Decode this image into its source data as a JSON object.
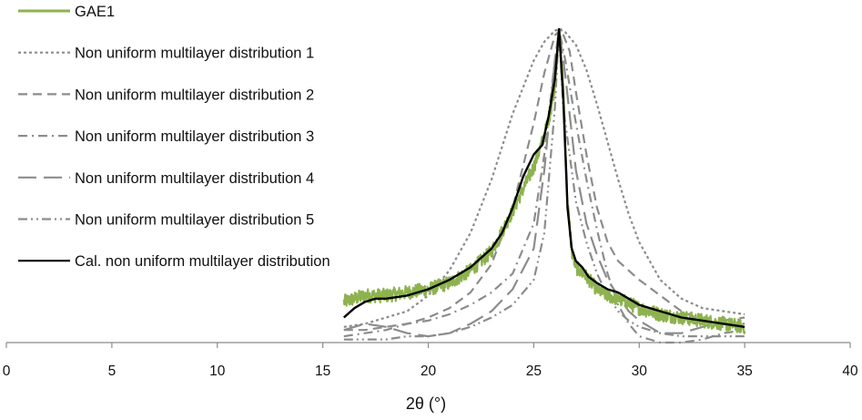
{
  "chart_data": {
    "type": "line",
    "title": "",
    "xlabel": "2θ (°)",
    "ylabel": "",
    "xlim": [
      0,
      40
    ],
    "ylim": [
      0,
      1
    ],
    "xticks": [
      "0",
      "5",
      "10",
      "15",
      "20",
      "25",
      "30",
      "35",
      "40"
    ],
    "y_axis_visible": false,
    "grid": false,
    "legend_position": "top-left",
    "series": [
      {
        "name": "GAE1",
        "color": "#8DB24F",
        "style": "solid",
        "noisy": true,
        "points": [
          [
            16,
            0.13
          ],
          [
            17,
            0.15
          ],
          [
            18,
            0.15
          ],
          [
            19,
            0.16
          ],
          [
            20,
            0.17
          ],
          [
            21,
            0.19
          ],
          [
            22,
            0.23
          ],
          [
            23,
            0.29
          ],
          [
            24,
            0.42
          ],
          [
            25,
            0.56
          ],
          [
            25.5,
            0.66
          ],
          [
            25.8,
            0.74
          ],
          [
            26,
            0.82
          ],
          [
            26.2,
            1.0
          ],
          [
            26.4,
            0.82
          ],
          [
            26.6,
            0.45
          ],
          [
            26.8,
            0.29
          ],
          [
            27,
            0.24
          ],
          [
            27.5,
            0.21
          ],
          [
            28,
            0.17
          ],
          [
            28.5,
            0.15
          ],
          [
            29,
            0.14
          ],
          [
            30,
            0.11
          ],
          [
            31,
            0.09
          ],
          [
            32,
            0.08
          ],
          [
            33,
            0.07
          ],
          [
            34,
            0.06
          ],
          [
            35,
            0.05
          ]
        ]
      },
      {
        "name": "Non uniform multilayer distribution 1",
        "color": "#8c8c8c",
        "style": "dotted",
        "points": [
          [
            16,
            0.05
          ],
          [
            17,
            0.06
          ],
          [
            18,
            0.08
          ],
          [
            19,
            0.1
          ],
          [
            20,
            0.15
          ],
          [
            21,
            0.23
          ],
          [
            22,
            0.35
          ],
          [
            23,
            0.52
          ],
          [
            24,
            0.73
          ],
          [
            25,
            0.9
          ],
          [
            25.5,
            0.96
          ],
          [
            26,
            0.995
          ],
          [
            26.2,
            1.0
          ],
          [
            26.5,
            0.99
          ],
          [
            27,
            0.95
          ],
          [
            27.5,
            0.87
          ],
          [
            28,
            0.76
          ],
          [
            28.5,
            0.64
          ],
          [
            29,
            0.52
          ],
          [
            29.5,
            0.41
          ],
          [
            30,
            0.32
          ],
          [
            31,
            0.2
          ],
          [
            32,
            0.14
          ],
          [
            33,
            0.11
          ],
          [
            34,
            0.1
          ],
          [
            35,
            0.09
          ]
        ]
      },
      {
        "name": "Non uniform multilayer distribution 2",
        "color": "#8c8c8c",
        "style": "dashed",
        "points": [
          [
            16,
            0.04
          ],
          [
            17,
            0.04
          ],
          [
            18,
            0.05
          ],
          [
            19,
            0.06
          ],
          [
            20,
            0.08
          ],
          [
            21,
            0.11
          ],
          [
            22,
            0.16
          ],
          [
            23,
            0.25
          ],
          [
            24,
            0.43
          ],
          [
            25,
            0.7
          ],
          [
            25.5,
            0.86
          ],
          [
            26,
            0.98
          ],
          [
            26.3,
            1.0
          ],
          [
            26.7,
            0.93
          ],
          [
            27,
            0.8
          ],
          [
            27.5,
            0.6
          ],
          [
            28,
            0.43
          ],
          [
            28.5,
            0.32
          ],
          [
            29,
            0.26
          ],
          [
            29.5,
            0.23
          ],
          [
            30,
            0.2
          ],
          [
            31,
            0.15
          ],
          [
            32,
            0.1
          ],
          [
            33,
            0.07
          ],
          [
            34,
            0.06
          ],
          [
            35,
            0.06
          ]
        ]
      },
      {
        "name": "Non uniform multilayer distribution 3",
        "color": "#8c8c8c",
        "style": "dash-dot",
        "points": [
          [
            16,
            0.02
          ],
          [
            17,
            0.03
          ],
          [
            18,
            0.04
          ],
          [
            19,
            0.06
          ],
          [
            20,
            0.07
          ],
          [
            21,
            0.09
          ],
          [
            22,
            0.12
          ],
          [
            23,
            0.16
          ],
          [
            24,
            0.22
          ],
          [
            25,
            0.38
          ],
          [
            25.5,
            0.6
          ],
          [
            26,
            0.9
          ],
          [
            26.2,
            1.0
          ],
          [
            26.5,
            0.9
          ],
          [
            27,
            0.7
          ],
          [
            27.5,
            0.52
          ],
          [
            28,
            0.36
          ],
          [
            28.5,
            0.22
          ],
          [
            29,
            0.12
          ],
          [
            29.5,
            0.06
          ],
          [
            30,
            0.02
          ],
          [
            31,
            0.0
          ],
          [
            32,
            0.0
          ],
          [
            33,
            0.01
          ],
          [
            34,
            0.03
          ],
          [
            35,
            0.04
          ]
        ]
      },
      {
        "name": "Non uniform multilayer distribution 4",
        "color": "#8c8c8c",
        "style": "long-dash",
        "points": [
          [
            16,
            0.04
          ],
          [
            17,
            0.06
          ],
          [
            18,
            0.05
          ],
          [
            19,
            0.03
          ],
          [
            20,
            0.02
          ],
          [
            21,
            0.03
          ],
          [
            22,
            0.06
          ],
          [
            23,
            0.1
          ],
          [
            24,
            0.17
          ],
          [
            25,
            0.3
          ],
          [
            25.5,
            0.55
          ],
          [
            26,
            0.9
          ],
          [
            26.2,
            1.0
          ],
          [
            26.5,
            0.85
          ],
          [
            27,
            0.55
          ],
          [
            27.5,
            0.38
          ],
          [
            28,
            0.28
          ],
          [
            28.5,
            0.2
          ],
          [
            29,
            0.15
          ],
          [
            29.5,
            0.1
          ],
          [
            30,
            0.07
          ],
          [
            31,
            0.03
          ],
          [
            32,
            0.03
          ],
          [
            33,
            0.05
          ],
          [
            34,
            0.07
          ],
          [
            35,
            0.08
          ]
        ]
      },
      {
        "name": "Non uniform multilayer distribution 5",
        "color": "#8c8c8c",
        "style": "dash-dot-dot",
        "points": [
          [
            16,
            0.01
          ],
          [
            17,
            0.01
          ],
          [
            18,
            0.01
          ],
          [
            19,
            0.02
          ],
          [
            20,
            0.02
          ],
          [
            21,
            0.03
          ],
          [
            22,
            0.05
          ],
          [
            23,
            0.08
          ],
          [
            24,
            0.12
          ],
          [
            25,
            0.2
          ],
          [
            25.5,
            0.35
          ],
          [
            26,
            0.75
          ],
          [
            26.2,
            1.0
          ],
          [
            26.4,
            0.75
          ],
          [
            27,
            0.45
          ],
          [
            27.5,
            0.32
          ],
          [
            28,
            0.22
          ],
          [
            28.5,
            0.15
          ],
          [
            29,
            0.1
          ],
          [
            29.5,
            0.07
          ],
          [
            30,
            0.05
          ],
          [
            31,
            0.03
          ],
          [
            32,
            0.02
          ],
          [
            33,
            0.02
          ],
          [
            34,
            0.02
          ],
          [
            35,
            0.02
          ]
        ]
      },
      {
        "name": "Cal. non uniform multilayer distribution",
        "color": "#000000",
        "style": "solid",
        "points": [
          [
            16,
            0.08
          ],
          [
            16.5,
            0.11
          ],
          [
            17,
            0.13
          ],
          [
            17.5,
            0.14
          ],
          [
            18,
            0.14
          ],
          [
            19,
            0.15
          ],
          [
            20,
            0.17
          ],
          [
            21,
            0.2
          ],
          [
            22,
            0.24
          ],
          [
            23,
            0.3
          ],
          [
            23.5,
            0.35
          ],
          [
            24,
            0.43
          ],
          [
            24.5,
            0.53
          ],
          [
            25,
            0.6
          ],
          [
            25.4,
            0.63
          ],
          [
            25.7,
            0.72
          ],
          [
            26,
            0.84
          ],
          [
            26.2,
            1.0
          ],
          [
            26.4,
            0.78
          ],
          [
            26.6,
            0.43
          ],
          [
            26.8,
            0.3
          ],
          [
            27,
            0.26
          ],
          [
            27.3,
            0.24
          ],
          [
            27.6,
            0.21
          ],
          [
            28,
            0.19
          ],
          [
            28.5,
            0.17
          ],
          [
            29,
            0.16
          ],
          [
            29.5,
            0.14
          ],
          [
            30,
            0.12
          ],
          [
            31,
            0.1
          ],
          [
            32,
            0.08
          ],
          [
            33,
            0.07
          ],
          [
            34,
            0.06
          ],
          [
            35,
            0.05
          ]
        ]
      }
    ]
  }
}
